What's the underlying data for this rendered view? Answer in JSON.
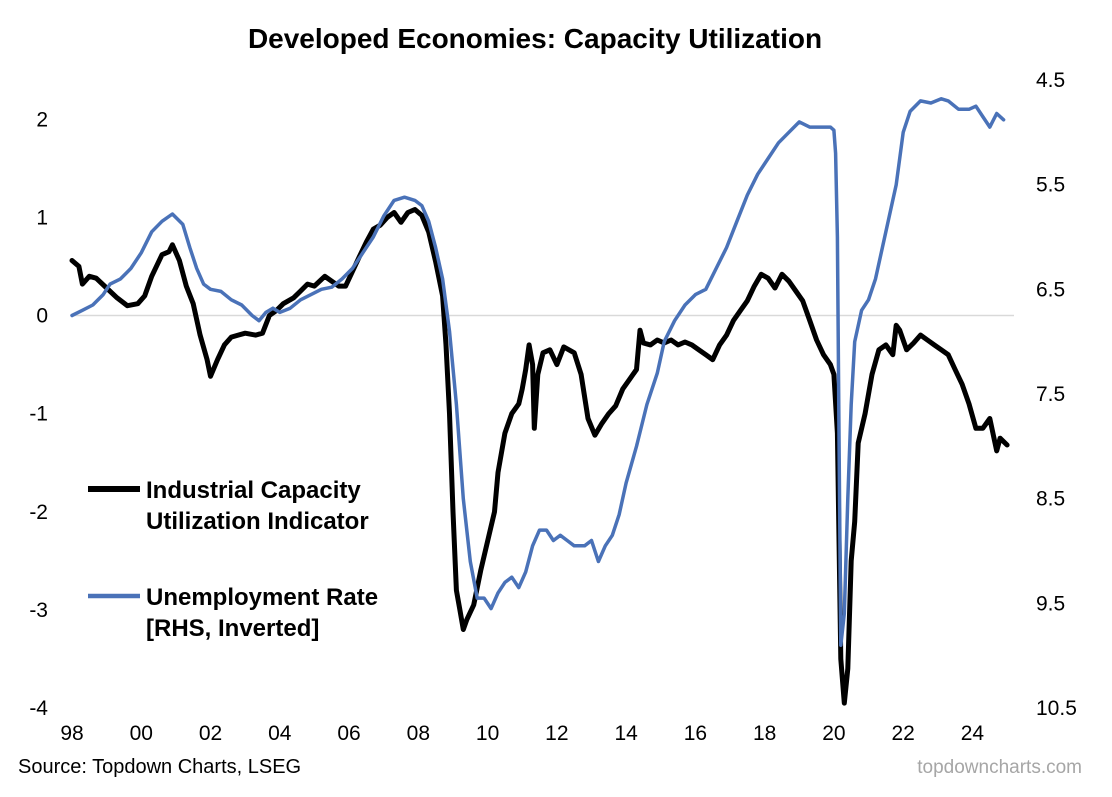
{
  "chart_data": {
    "type": "line",
    "title": "Developed Economies: Capacity Utilization",
    "source": "Source: Topdown Charts, LSEG",
    "brand": "topdowncharts.com",
    "xlabel": "",
    "x_ticks": [
      {
        "year": 1998,
        "label": "98"
      },
      {
        "year": 2000,
        "label": "00"
      },
      {
        "year": 2002,
        "label": "02"
      },
      {
        "year": 2004,
        "label": "04"
      },
      {
        "year": 2006,
        "label": "06"
      },
      {
        "year": 2008,
        "label": "08"
      },
      {
        "year": 2010,
        "label": "10"
      },
      {
        "year": 2012,
        "label": "12"
      },
      {
        "year": 2014,
        "label": "14"
      },
      {
        "year": 2016,
        "label": "16"
      },
      {
        "year": 2018,
        "label": "18"
      },
      {
        "year": 2020,
        "label": "20"
      },
      {
        "year": 2022,
        "label": "22"
      },
      {
        "year": 2024,
        "label": "24"
      }
    ],
    "xlim": [
      1998,
      2025.2
    ],
    "y_left": {
      "ticks": [
        "2",
        "1",
        "0",
        "-1",
        "-2",
        "-3",
        "-4"
      ],
      "lim": [
        -4,
        2.4
      ]
    },
    "y_right": {
      "ticks": [
        "4.5",
        "5.5",
        "6.5",
        "7.5",
        "8.5",
        "9.5",
        "10.5"
      ],
      "lim": [
        4.5,
        10.5
      ],
      "inverted": true
    },
    "zero_line": 0,
    "legend": {
      "items": [
        {
          "label_lines": [
            "Industrial Capacity",
            "Utilization Indicator"
          ],
          "color": "#000000"
        },
        {
          "label_lines": [
            "Unemployment Rate",
            "[RHS, Inverted]"
          ],
          "color": "#4a72b8"
        }
      ]
    },
    "series": [
      {
        "name": "Industrial Capacity Utilization Indicator",
        "axis": "left",
        "color": "#000000",
        "points": [
          [
            1998.0,
            0.56
          ],
          [
            1998.2,
            0.5
          ],
          [
            1998.3,
            0.32
          ],
          [
            1998.5,
            0.4
          ],
          [
            1998.7,
            0.38
          ],
          [
            1999.0,
            0.28
          ],
          [
            1999.3,
            0.18
          ],
          [
            1999.6,
            0.1
          ],
          [
            1999.9,
            0.12
          ],
          [
            2000.1,
            0.2
          ],
          [
            2000.3,
            0.4
          ],
          [
            2000.6,
            0.62
          ],
          [
            2000.8,
            0.65
          ],
          [
            2000.9,
            0.72
          ],
          [
            2001.1,
            0.56
          ],
          [
            2001.3,
            0.3
          ],
          [
            2001.5,
            0.12
          ],
          [
            2001.7,
            -0.2
          ],
          [
            2001.9,
            -0.45
          ],
          [
            2002.0,
            -0.62
          ],
          [
            2002.2,
            -0.45
          ],
          [
            2002.4,
            -0.3
          ],
          [
            2002.6,
            -0.22
          ],
          [
            2002.8,
            -0.2
          ],
          [
            2003.0,
            -0.18
          ],
          [
            2003.3,
            -0.2
          ],
          [
            2003.5,
            -0.18
          ],
          [
            2003.7,
            0.0
          ],
          [
            2003.9,
            0.05
          ],
          [
            2004.1,
            0.12
          ],
          [
            2004.4,
            0.18
          ],
          [
            2004.6,
            0.25
          ],
          [
            2004.8,
            0.32
          ],
          [
            2005.0,
            0.3
          ],
          [
            2005.3,
            0.4
          ],
          [
            2005.5,
            0.35
          ],
          [
            2005.7,
            0.3
          ],
          [
            2005.9,
            0.3
          ],
          [
            2006.1,
            0.45
          ],
          [
            2006.3,
            0.6
          ],
          [
            2006.5,
            0.75
          ],
          [
            2006.7,
            0.88
          ],
          [
            2006.9,
            0.92
          ],
          [
            2007.1,
            1.0
          ],
          [
            2007.3,
            1.05
          ],
          [
            2007.5,
            0.95
          ],
          [
            2007.7,
            1.05
          ],
          [
            2007.9,
            1.08
          ],
          [
            2008.1,
            1.02
          ],
          [
            2008.3,
            0.85
          ],
          [
            2008.5,
            0.55
          ],
          [
            2008.7,
            0.2
          ],
          [
            2008.8,
            -0.3
          ],
          [
            2008.9,
            -1.0
          ],
          [
            2009.0,
            -2.0
          ],
          [
            2009.1,
            -2.8
          ],
          [
            2009.2,
            -3.0
          ],
          [
            2009.3,
            -3.2
          ],
          [
            2009.4,
            -3.1
          ],
          [
            2009.6,
            -2.95
          ],
          [
            2009.8,
            -2.6
          ],
          [
            2010.0,
            -2.3
          ],
          [
            2010.2,
            -2.0
          ],
          [
            2010.3,
            -1.6
          ],
          [
            2010.5,
            -1.2
          ],
          [
            2010.7,
            -1.0
          ],
          [
            2010.9,
            -0.9
          ],
          [
            2011.0,
            -0.75
          ],
          [
            2011.1,
            -0.55
          ],
          [
            2011.2,
            -0.3
          ],
          [
            2011.3,
            -0.5
          ],
          [
            2011.35,
            -1.15
          ],
          [
            2011.45,
            -0.6
          ],
          [
            2011.6,
            -0.38
          ],
          [
            2011.8,
            -0.35
          ],
          [
            2012.0,
            -0.5
          ],
          [
            2012.2,
            -0.32
          ],
          [
            2012.5,
            -0.38
          ],
          [
            2012.7,
            -0.6
          ],
          [
            2012.9,
            -1.05
          ],
          [
            2013.1,
            -1.22
          ],
          [
            2013.3,
            -1.1
          ],
          [
            2013.5,
            -1.0
          ],
          [
            2013.7,
            -0.92
          ],
          [
            2013.9,
            -0.75
          ],
          [
            2014.1,
            -0.65
          ],
          [
            2014.3,
            -0.55
          ],
          [
            2014.4,
            -0.15
          ],
          [
            2014.5,
            -0.28
          ],
          [
            2014.7,
            -0.3
          ],
          [
            2014.9,
            -0.25
          ],
          [
            2015.1,
            -0.28
          ],
          [
            2015.3,
            -0.25
          ],
          [
            2015.5,
            -0.3
          ],
          [
            2015.7,
            -0.27
          ],
          [
            2015.9,
            -0.3
          ],
          [
            2016.1,
            -0.35
          ],
          [
            2016.3,
            -0.4
          ],
          [
            2016.5,
            -0.45
          ],
          [
            2016.7,
            -0.3
          ],
          [
            2016.9,
            -0.2
          ],
          [
            2017.1,
            -0.05
          ],
          [
            2017.3,
            0.05
          ],
          [
            2017.5,
            0.15
          ],
          [
            2017.7,
            0.3
          ],
          [
            2017.9,
            0.42
          ],
          [
            2018.1,
            0.38
          ],
          [
            2018.3,
            0.28
          ],
          [
            2018.5,
            0.42
          ],
          [
            2018.7,
            0.35
          ],
          [
            2018.9,
            0.25
          ],
          [
            2019.1,
            0.15
          ],
          [
            2019.3,
            -0.05
          ],
          [
            2019.5,
            -0.25
          ],
          [
            2019.7,
            -0.4
          ],
          [
            2019.9,
            -0.5
          ],
          [
            2020.0,
            -0.6
          ],
          [
            2020.1,
            -1.2
          ],
          [
            2020.2,
            -3.5
          ],
          [
            2020.3,
            -3.95
          ],
          [
            2020.4,
            -3.6
          ],
          [
            2020.5,
            -2.5
          ],
          [
            2020.6,
            -2.1
          ],
          [
            2020.7,
            -1.3
          ],
          [
            2020.9,
            -1.0
          ],
          [
            2021.1,
            -0.6
          ],
          [
            2021.3,
            -0.35
          ],
          [
            2021.5,
            -0.3
          ],
          [
            2021.7,
            -0.4
          ],
          [
            2021.8,
            -0.1
          ],
          [
            2021.9,
            -0.15
          ],
          [
            2022.1,
            -0.35
          ],
          [
            2022.3,
            -0.28
          ],
          [
            2022.5,
            -0.2
          ],
          [
            2022.7,
            -0.25
          ],
          [
            2022.9,
            -0.3
          ],
          [
            2023.1,
            -0.35
          ],
          [
            2023.3,
            -0.4
          ],
          [
            2023.5,
            -0.55
          ],
          [
            2023.7,
            -0.7
          ],
          [
            2023.9,
            -0.9
          ],
          [
            2024.1,
            -1.15
          ],
          [
            2024.3,
            -1.15
          ],
          [
            2024.5,
            -1.05
          ],
          [
            2024.7,
            -1.38
          ],
          [
            2024.8,
            -1.25
          ],
          [
            2025.0,
            -1.32
          ]
        ]
      },
      {
        "name": "Unemployment Rate [RHS, Inverted]",
        "axis": "right",
        "color": "#4a72b8",
        "points": [
          [
            1998.0,
            6.75
          ],
          [
            1998.3,
            6.7
          ],
          [
            1998.6,
            6.65
          ],
          [
            1998.9,
            6.55
          ],
          [
            1999.1,
            6.45
          ],
          [
            1999.4,
            6.4
          ],
          [
            1999.7,
            6.3
          ],
          [
            2000.0,
            6.15
          ],
          [
            2000.3,
            5.95
          ],
          [
            2000.6,
            5.85
          ],
          [
            2000.9,
            5.78
          ],
          [
            2001.2,
            5.88
          ],
          [
            2001.4,
            6.1
          ],
          [
            2001.6,
            6.3
          ],
          [
            2001.8,
            6.45
          ],
          [
            2002.0,
            6.5
          ],
          [
            2002.3,
            6.52
          ],
          [
            2002.6,
            6.6
          ],
          [
            2002.9,
            6.65
          ],
          [
            2003.2,
            6.75
          ],
          [
            2003.4,
            6.8
          ],
          [
            2003.6,
            6.72
          ],
          [
            2003.8,
            6.68
          ],
          [
            2004.0,
            6.72
          ],
          [
            2004.3,
            6.68
          ],
          [
            2004.6,
            6.6
          ],
          [
            2004.9,
            6.55
          ],
          [
            2005.2,
            6.5
          ],
          [
            2005.5,
            6.48
          ],
          [
            2005.8,
            6.4
          ],
          [
            2006.1,
            6.3
          ],
          [
            2006.4,
            6.15
          ],
          [
            2006.7,
            6.0
          ],
          [
            2007.0,
            5.8
          ],
          [
            2007.3,
            5.65
          ],
          [
            2007.6,
            5.62
          ],
          [
            2007.9,
            5.65
          ],
          [
            2008.1,
            5.7
          ],
          [
            2008.3,
            5.85
          ],
          [
            2008.5,
            6.1
          ],
          [
            2008.7,
            6.4
          ],
          [
            2008.9,
            6.9
          ],
          [
            2009.1,
            7.6
          ],
          [
            2009.3,
            8.5
          ],
          [
            2009.5,
            9.1
          ],
          [
            2009.7,
            9.45
          ],
          [
            2009.9,
            9.45
          ],
          [
            2010.1,
            9.55
          ],
          [
            2010.3,
            9.4
          ],
          [
            2010.5,
            9.3
          ],
          [
            2010.7,
            9.25
          ],
          [
            2010.9,
            9.35
          ],
          [
            2011.1,
            9.2
          ],
          [
            2011.3,
            8.95
          ],
          [
            2011.5,
            8.8
          ],
          [
            2011.7,
            8.8
          ],
          [
            2011.9,
            8.9
          ],
          [
            2012.1,
            8.85
          ],
          [
            2012.3,
            8.9
          ],
          [
            2012.5,
            8.95
          ],
          [
            2012.8,
            8.95
          ],
          [
            2013.0,
            8.9
          ],
          [
            2013.2,
            9.1
          ],
          [
            2013.4,
            8.95
          ],
          [
            2013.6,
            8.85
          ],
          [
            2013.8,
            8.65
          ],
          [
            2014.0,
            8.35
          ],
          [
            2014.3,
            8.0
          ],
          [
            2014.6,
            7.6
          ],
          [
            2014.9,
            7.3
          ],
          [
            2015.1,
            7.0
          ],
          [
            2015.4,
            6.8
          ],
          [
            2015.7,
            6.65
          ],
          [
            2016.0,
            6.55
          ],
          [
            2016.3,
            6.5
          ],
          [
            2016.6,
            6.3
          ],
          [
            2016.9,
            6.1
          ],
          [
            2017.2,
            5.85
          ],
          [
            2017.5,
            5.6
          ],
          [
            2017.8,
            5.4
          ],
          [
            2018.1,
            5.25
          ],
          [
            2018.4,
            5.1
          ],
          [
            2018.7,
            5.0
          ],
          [
            2019.0,
            4.9
          ],
          [
            2019.3,
            4.95
          ],
          [
            2019.6,
            4.95
          ],
          [
            2019.9,
            4.95
          ],
          [
            2020.0,
            4.98
          ],
          [
            2020.05,
            5.2
          ],
          [
            2020.1,
            6.0
          ],
          [
            2020.15,
            8.0
          ],
          [
            2020.2,
            9.9
          ],
          [
            2020.3,
            9.6
          ],
          [
            2020.4,
            8.5
          ],
          [
            2020.5,
            7.6
          ],
          [
            2020.6,
            7.0
          ],
          [
            2020.8,
            6.7
          ],
          [
            2021.0,
            6.6
          ],
          [
            2021.2,
            6.4
          ],
          [
            2021.4,
            6.1
          ],
          [
            2021.6,
            5.8
          ],
          [
            2021.8,
            5.5
          ],
          [
            2022.0,
            5.0
          ],
          [
            2022.2,
            4.8
          ],
          [
            2022.5,
            4.7
          ],
          [
            2022.8,
            4.72
          ],
          [
            2023.1,
            4.68
          ],
          [
            2023.3,
            4.7
          ],
          [
            2023.6,
            4.78
          ],
          [
            2023.9,
            4.78
          ],
          [
            2024.1,
            4.75
          ],
          [
            2024.3,
            4.85
          ],
          [
            2024.5,
            4.95
          ],
          [
            2024.7,
            4.82
          ],
          [
            2024.9,
            4.88
          ]
        ]
      }
    ]
  }
}
